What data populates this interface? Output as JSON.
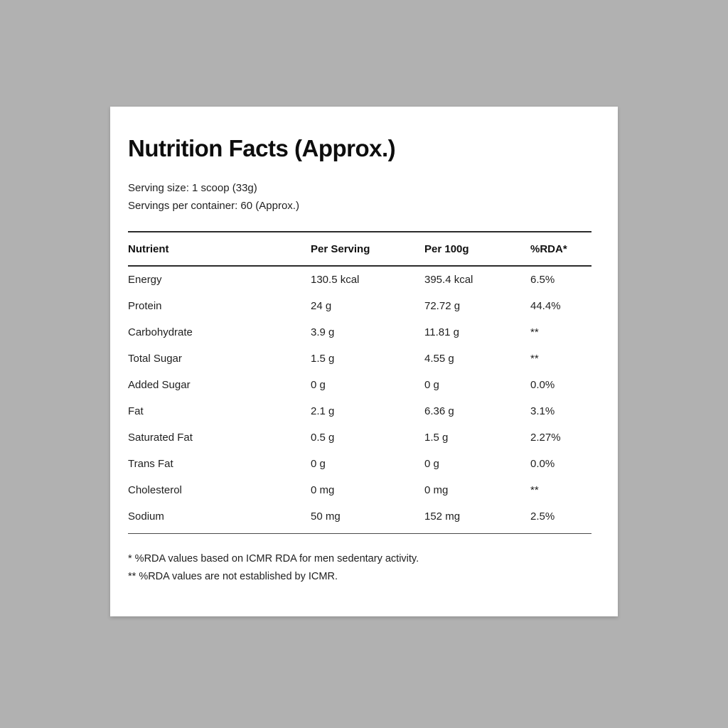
{
  "colors": {
    "background": "#b1b1b1",
    "card": "#ffffff",
    "text": "#1f1f1f",
    "rule": "#2b2b2b"
  },
  "card": {
    "title": "Nutrition Facts (Approx.)",
    "serving_size": "Serving size: 1 scoop (33g)",
    "servings_per_container": "Servings per container: 60 (Approx.)",
    "table": {
      "headers": [
        "Nutrient",
        "Per Serving",
        "Per 100g",
        "%RDA*"
      ],
      "rows": [
        {
          "nutrient": "Energy",
          "per_serving": "130.5 kcal",
          "per_100g": "395.4 kcal",
          "rda": "6.5%"
        },
        {
          "nutrient": "Protein",
          "per_serving": "24 g",
          "per_100g": "72.72 g",
          "rda": "44.4%"
        },
        {
          "nutrient": "Carbohydrate",
          "per_serving": "3.9 g",
          "per_100g": "11.81 g",
          "rda": "**"
        },
        {
          "nutrient": "Total Sugar",
          "per_serving": "1.5 g",
          "per_100g": "4.55 g",
          "rda": "**"
        },
        {
          "nutrient": "Added Sugar",
          "per_serving": "0 g",
          "per_100g": "0 g",
          "rda": "0.0%"
        },
        {
          "nutrient": "Fat",
          "per_serving": "2.1 g",
          "per_100g": "6.36 g",
          "rda": "3.1%"
        },
        {
          "nutrient": "Saturated Fat",
          "per_serving": "0.5 g",
          "per_100g": "1.5 g",
          "rda": "2.27%"
        },
        {
          "nutrient": "Trans Fat",
          "per_serving": "0 g",
          "per_100g": "0 g",
          "rda": "0.0%"
        },
        {
          "nutrient": "Cholesterol",
          "per_serving": "0 mg",
          "per_100g": "0 mg",
          "rda": "**"
        },
        {
          "nutrient": "Sodium",
          "per_serving": "50 mg",
          "per_100g": "152 mg",
          "rda": "2.5%"
        }
      ]
    },
    "footnotes": [
      "* %RDA values based on ICMR RDA for men sedentary activity.",
      "** %RDA values are not established by ICMR."
    ]
  }
}
